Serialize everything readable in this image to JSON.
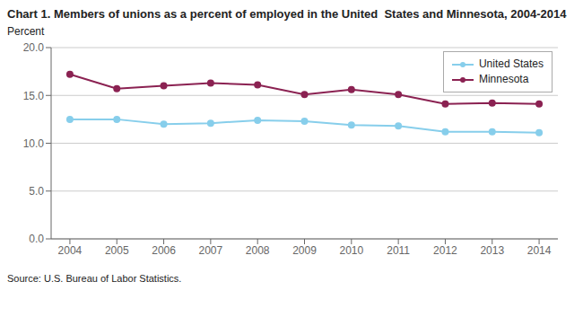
{
  "chart_data": {
    "type": "line",
    "title": "Chart 1. Members of unions as a percent of employed in the United  States and Minnesota, 2004-2014",
    "ylabel": "Percent",
    "source": "Source: U.S. Bureau of Labor Statistics.",
    "x": [
      2004,
      2005,
      2006,
      2007,
      2008,
      2009,
      2010,
      2011,
      2012,
      2013,
      2014
    ],
    "xlim": [
      2003.6,
      2014.4
    ],
    "xticks": [
      2004,
      2005,
      2006,
      2007,
      2008,
      2009,
      2010,
      2011,
      2012,
      2013,
      2014
    ],
    "ylim": [
      0,
      20
    ],
    "yticks": [
      {
        "value": 0,
        "label": "0.0"
      },
      {
        "value": 5,
        "label": "5.0"
      },
      {
        "value": 10,
        "label": "10.0"
      },
      {
        "value": 15,
        "label": "15.0"
      },
      {
        "value": 20,
        "label": "20.0"
      }
    ],
    "grid": true,
    "legend": "upper right",
    "series": [
      {
        "name": "United States",
        "color": "#87CEEB",
        "marker": "circle",
        "values": [
          12.5,
          12.5,
          12.0,
          12.1,
          12.4,
          12.3,
          11.9,
          11.8,
          11.2,
          11.2,
          11.1
        ]
      },
      {
        "name": "Minnesota",
        "color": "#8B2252",
        "marker": "circle",
        "values": [
          17.2,
          15.7,
          16.0,
          16.3,
          16.1,
          15.1,
          15.6,
          15.1,
          14.1,
          14.2,
          14.1
        ]
      }
    ]
  }
}
